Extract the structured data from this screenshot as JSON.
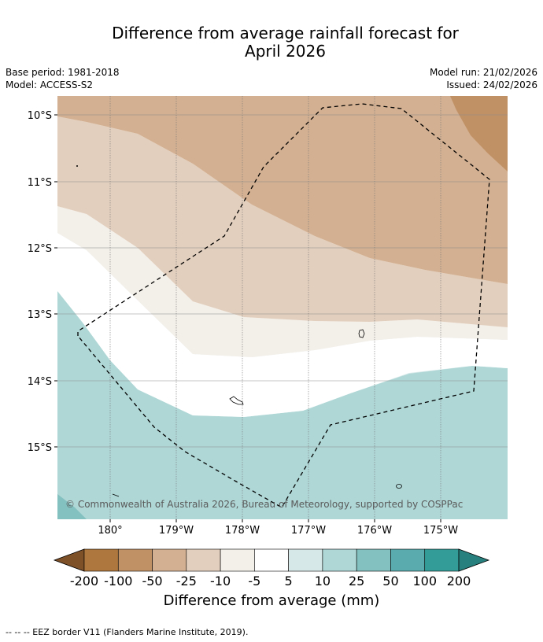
{
  "title": {
    "line1": "Difference from average rainfall forecast for",
    "line2": "April 2026"
  },
  "meta": {
    "base_period": "Base period: 1981-2018",
    "model": "Model: ACCESS-S2",
    "model_run": "Model run: 21/02/2026",
    "issued": "Issued: 24/02/2026"
  },
  "map": {
    "lat_labels": [
      "10°S",
      "11°S",
      "12°S",
      "13°S",
      "14°S",
      "15°S"
    ],
    "lon_labels": [
      "180°",
      "179°W",
      "178°W",
      "177°W",
      "176°W",
      "175°W"
    ],
    "copyright": "© Commonwealth of Australia 2026, Bureau of Meteorology, supported by COSPPac"
  },
  "colorbar": {
    "title": "Difference from average (mm)",
    "labels": [
      "-200",
      "-100",
      "-50",
      "-25",
      "-10",
      "-5",
      "5",
      "10",
      "25",
      "50",
      "100",
      "200"
    ],
    "colors": [
      "#7f5129",
      "#ae773e",
      "#c19166",
      "#d3b091",
      "#e3cfbd",
      "#f3efe9",
      "#ffffff",
      "#d6e9e8",
      "#afd7d6",
      "#83c0c0",
      "#5aabad",
      "#339c98",
      "#27807d"
    ]
  },
  "legend": {
    "eez_label": "--  --  -- EEZ border V11 (Flanders Marine Institute, 2019)."
  }
}
